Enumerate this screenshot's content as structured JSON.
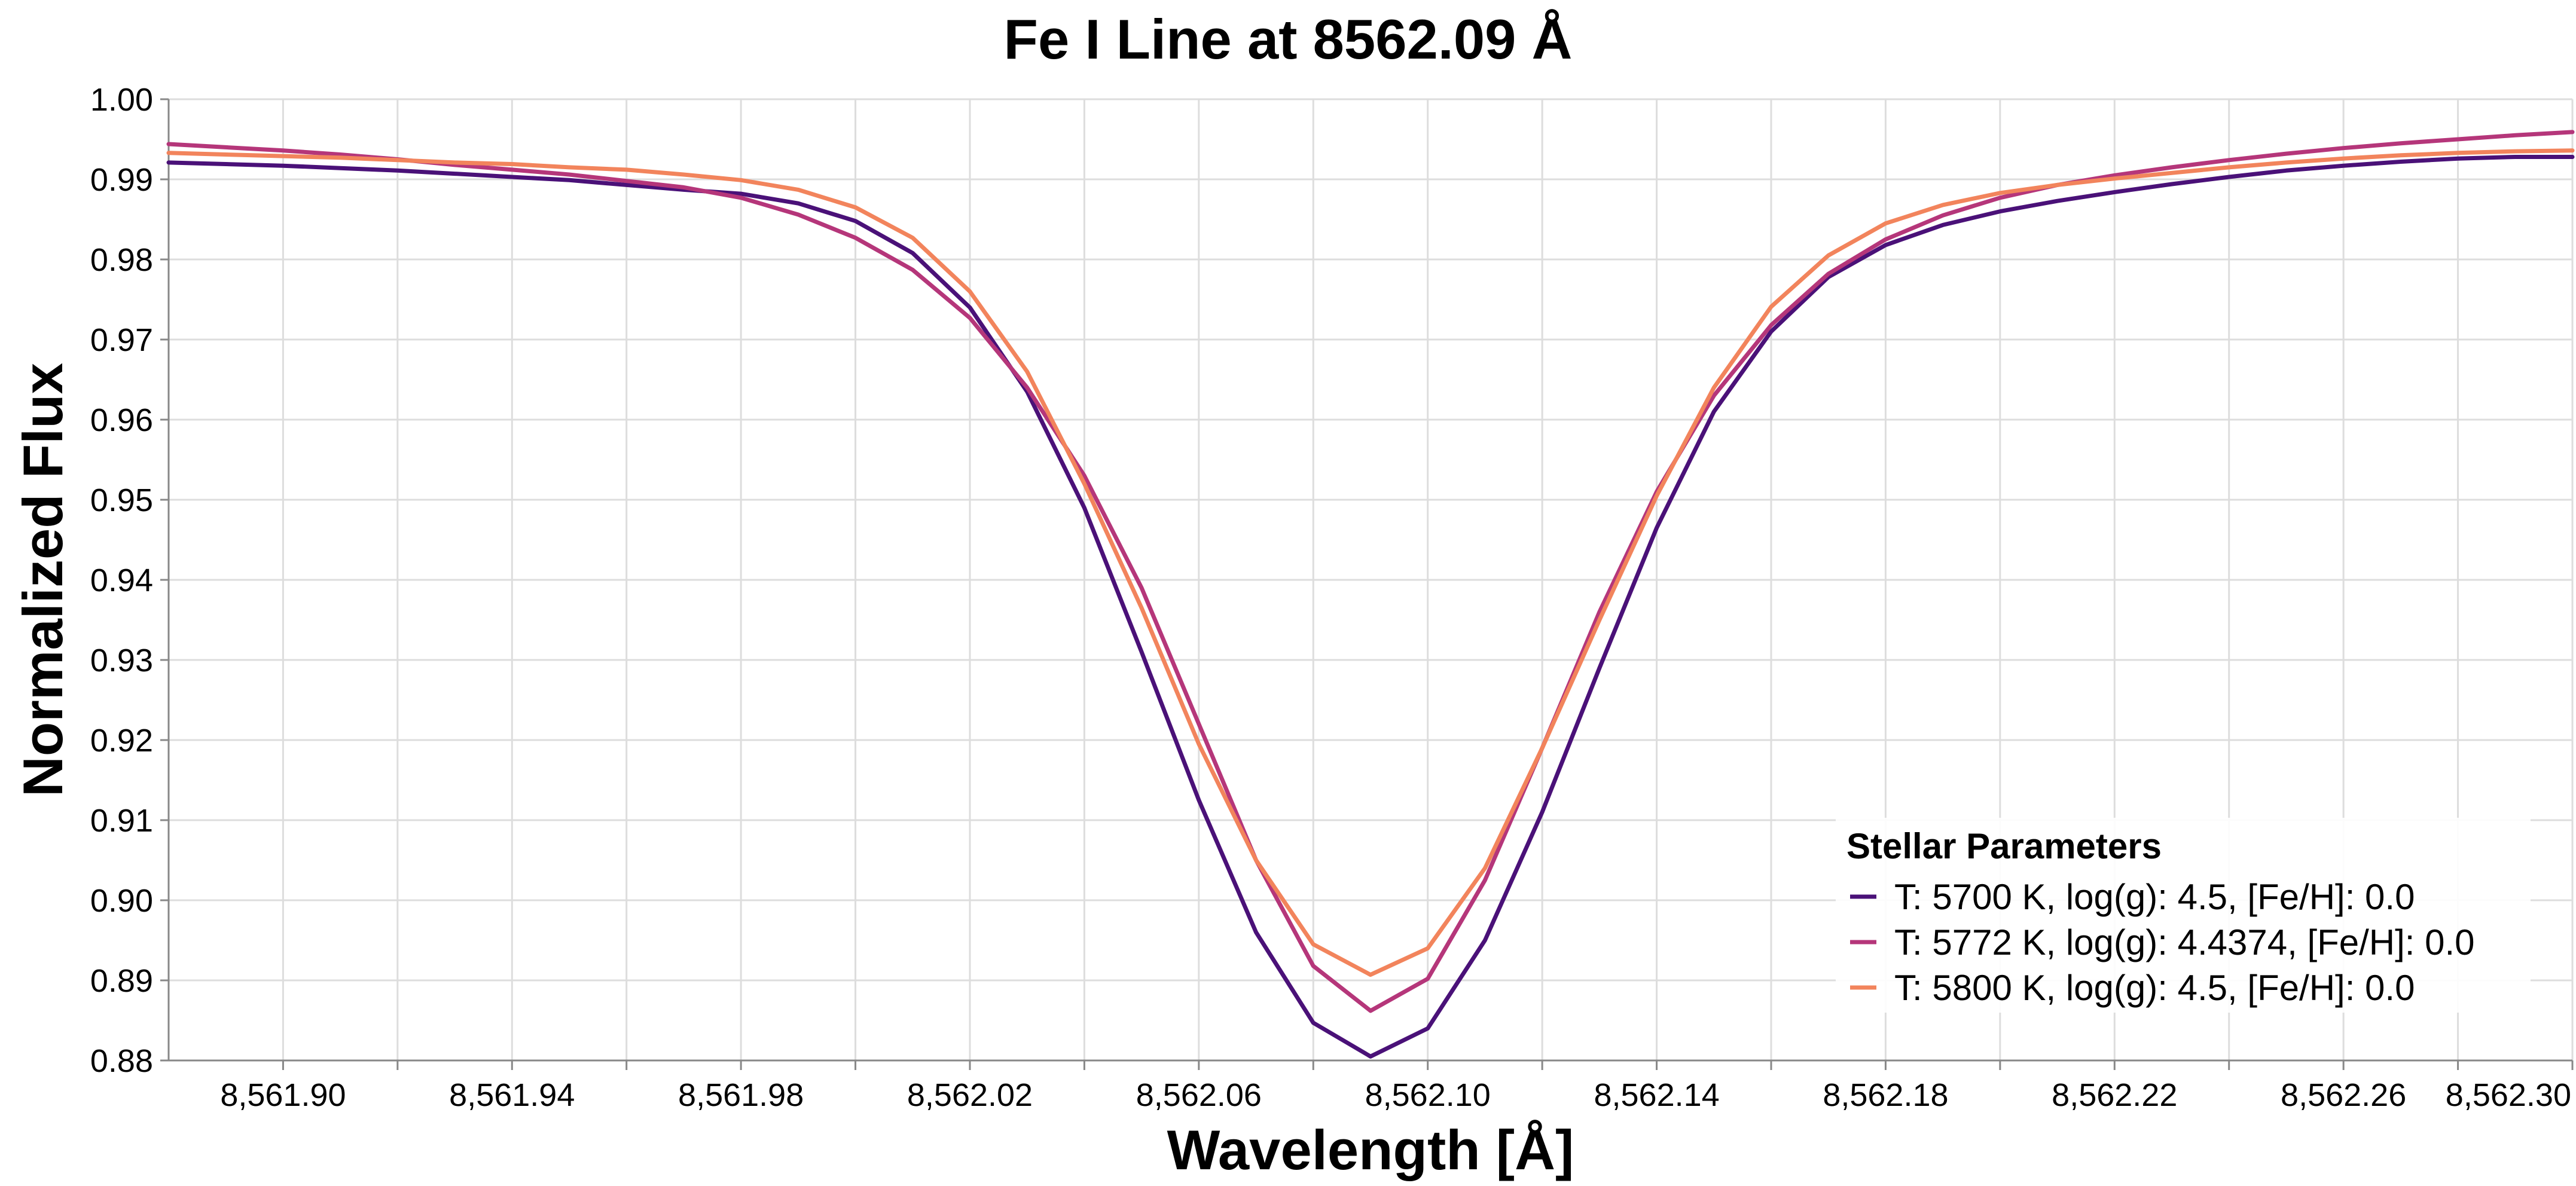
{
  "chart_data": {
    "type": "line",
    "title": "Fe I Line at 8562.09 Å",
    "xlabel": "Wavelength [Å]",
    "ylabel": "Normalized Flux",
    "xlim": [
      8561.88,
      8562.3
    ],
    "ylim": [
      0.88,
      1.0
    ],
    "x_ticks": [
      8561.9,
      8561.94,
      8561.98,
      8562.02,
      8562.06,
      8562.1,
      8562.14,
      8562.18,
      8562.22,
      8562.26,
      8562.3
    ],
    "x_tick_labels": [
      "8,561.90",
      "8,561.94",
      "8,561.98",
      "8,562.02",
      "8,562.06",
      "8,562.10",
      "8,562.14",
      "8,562.18",
      "8,562.22",
      "8,562.26",
      "8,562.30"
    ],
    "x_minor_ticks": [
      8561.92,
      8561.96,
      8562.0,
      8562.04,
      8562.08,
      8562.12,
      8562.16,
      8562.2,
      8562.24,
      8562.28
    ],
    "y_ticks": [
      0.88,
      0.89,
      0.9,
      0.91,
      0.92,
      0.93,
      0.94,
      0.95,
      0.96,
      0.97,
      0.98,
      0.99,
      1.0
    ],
    "y_tick_labels": [
      "0.88",
      "0.89",
      "0.90",
      "0.91",
      "0.92",
      "0.93",
      "0.94",
      "0.95",
      "0.96",
      "0.97",
      "0.98",
      "0.99",
      "1.00"
    ],
    "grid": true,
    "legend": {
      "title": "Stellar Parameters",
      "placement": "bottom-right"
    },
    "x": [
      8561.88,
      8561.89,
      8561.9,
      8561.91,
      8561.92,
      8561.93,
      8561.94,
      8561.95,
      8561.96,
      8561.97,
      8561.98,
      8561.99,
      8562.0,
      8562.01,
      8562.02,
      8562.03,
      8562.04,
      8562.05,
      8562.06,
      8562.07,
      8562.08,
      8562.09,
      8562.1,
      8562.11,
      8562.12,
      8562.13,
      8562.14,
      8562.15,
      8562.16,
      8562.17,
      8562.18,
      8562.19,
      8562.2,
      8562.21,
      8562.22,
      8562.23,
      8562.24,
      8562.25,
      8562.26,
      8562.27,
      8562.28,
      8562.29,
      8562.3
    ],
    "series": [
      {
        "name": "T: 5700 K, log(g): 4.5, [Fe/H]: 0.0",
        "color": "#4a1178",
        "values": [
          0.9921,
          0.9919,
          0.9917,
          0.9914,
          0.9911,
          0.9907,
          0.9903,
          0.9899,
          0.9893,
          0.9887,
          0.9882,
          0.987,
          0.9848,
          0.9808,
          0.974,
          0.9635,
          0.949,
          0.931,
          0.9125,
          0.896,
          0.8847,
          0.8805,
          0.884,
          0.895,
          0.911,
          0.929,
          0.9465,
          0.961,
          0.971,
          0.9778,
          0.9818,
          0.9843,
          0.986,
          0.9873,
          0.9884,
          0.9894,
          0.9903,
          0.9911,
          0.9917,
          0.9922,
          0.9926,
          0.9928,
          0.9928
        ]
      },
      {
        "name": "T: 5772 K, log(g): 4.4374, [Fe/H]: 0.0",
        "color": "#b5367a",
        "values": [
          0.9944,
          0.994,
          0.9936,
          0.9931,
          0.9925,
          0.9918,
          0.9912,
          0.9906,
          0.9898,
          0.989,
          0.9877,
          0.9856,
          0.9827,
          0.9787,
          0.9727,
          0.964,
          0.953,
          0.939,
          0.922,
          0.905,
          0.8918,
          0.8862,
          0.8902,
          0.9025,
          0.919,
          0.936,
          0.951,
          0.963,
          0.9718,
          0.9782,
          0.9825,
          0.9855,
          0.9877,
          0.9893,
          0.9905,
          0.9915,
          0.9924,
          0.9932,
          0.9939,
          0.9945,
          0.995,
          0.9955,
          0.9959
        ]
      },
      {
        "name": "T: 5800 K, log(g): 4.5, [Fe/H]: 0.0",
        "color": "#f2845c",
        "values": [
          0.9933,
          0.9931,
          0.9929,
          0.9927,
          0.9924,
          0.9921,
          0.9919,
          0.9915,
          0.9912,
          0.9906,
          0.9899,
          0.9887,
          0.9865,
          0.9827,
          0.976,
          0.966,
          0.952,
          0.9365,
          0.9195,
          0.905,
          0.8945,
          0.8907,
          0.894,
          0.904,
          0.919,
          0.935,
          0.9505,
          0.964,
          0.9741,
          0.9805,
          0.9845,
          0.9868,
          0.9883,
          0.9893,
          0.9901,
          0.9908,
          0.9915,
          0.9921,
          0.9926,
          0.993,
          0.9933,
          0.9935,
          0.9936
        ]
      }
    ]
  }
}
